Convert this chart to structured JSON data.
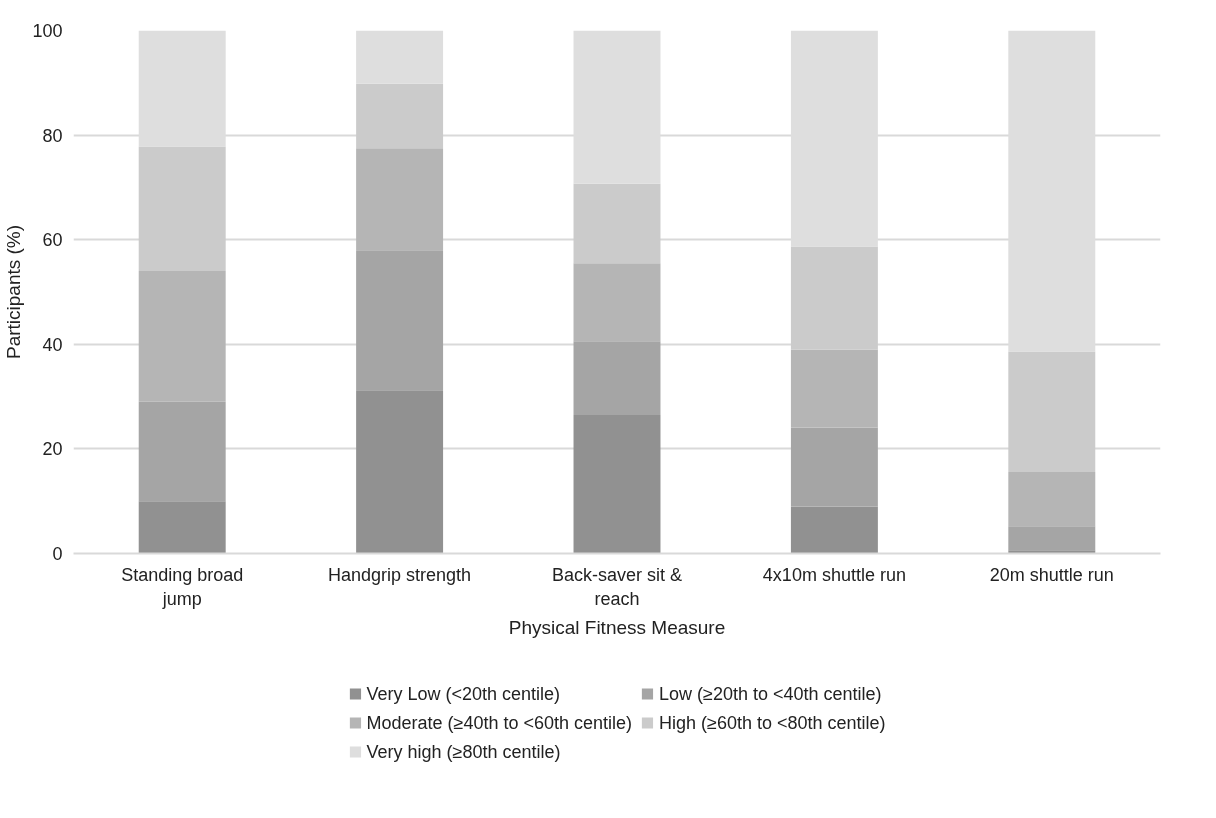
{
  "chart_data": {
    "type": "bar",
    "stacked": true,
    "xlabel": "Physical Fitness Measure",
    "ylabel": "Participants (%)",
    "categories": [
      "Standing broad jump",
      "Handgrip strength",
      "Back-saver sit & reach",
      "4x10m shuttle run",
      "20m shuttle run"
    ],
    "series": [
      {
        "name": "Very Low (<20th centile)",
        "color": "#919191",
        "values": [
          10,
          31.2,
          26.5,
          9,
          0.6
        ]
      },
      {
        "name": "Low (≥20th to <40th centile)",
        "color": "#a5a5a5",
        "values": [
          19,
          26.8,
          14.1,
          15.1,
          4.6
        ]
      },
      {
        "name": "Moderate (≥40th to <60th centile)",
        "color": "#b5b5b5",
        "values": [
          25,
          19.5,
          14.9,
          14.9,
          10.4
        ]
      },
      {
        "name": "High (≥60th to <80th centile)",
        "color": "#cbcbcb",
        "values": [
          23.8,
          12.3,
          15.2,
          19.7,
          23
        ]
      },
      {
        "name": "Very high (≥80th centile)",
        "color": "#dedede",
        "values": [
          22.2,
          10.2,
          29.3,
          41.3,
          61.4
        ]
      }
    ],
    "ylim": [
      0,
      100
    ],
    "yticks": [
      0,
      20,
      40,
      60,
      80,
      100
    ],
    "grid": "y",
    "legend": "bottom"
  }
}
